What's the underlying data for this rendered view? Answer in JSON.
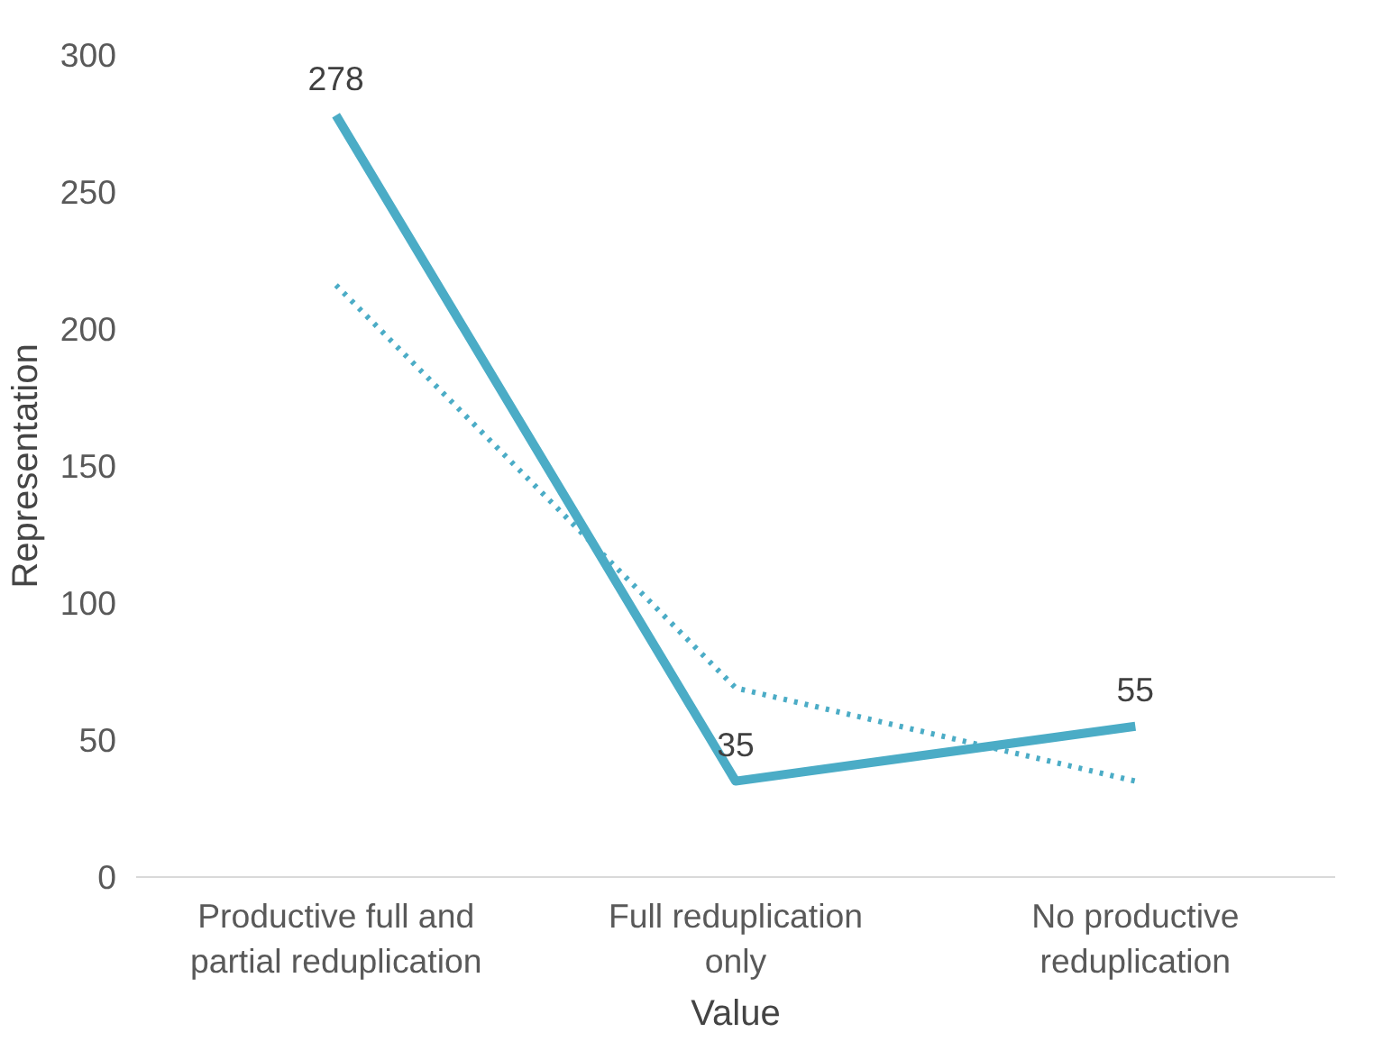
{
  "chart_data": {
    "type": "line",
    "xlabel": "Value",
    "ylabel": "Representation",
    "categories": [
      "Productive full and partial reduplication",
      "Full reduplication only",
      "No productive reduplication"
    ],
    "series": [
      {
        "color": "#4bacc6",
        "values": [
          278,
          35,
          55
        ],
        "value_labels": [
          "278",
          "35",
          "55"
        ],
        "line_style": "solid"
      },
      {
        "type": "line",
        "color": "#4bacc6",
        "line_style": "dotted",
        "values": [
          216,
          69,
          35
        ],
        "value_labels": [
          null,
          null,
          null
        ]
      }
    ],
    "ylim": [
      0,
      300
    ],
    "yticks": [
      0,
      50,
      100,
      150,
      200,
      250,
      300
    ],
    "grid": false,
    "marker": "none"
  }
}
